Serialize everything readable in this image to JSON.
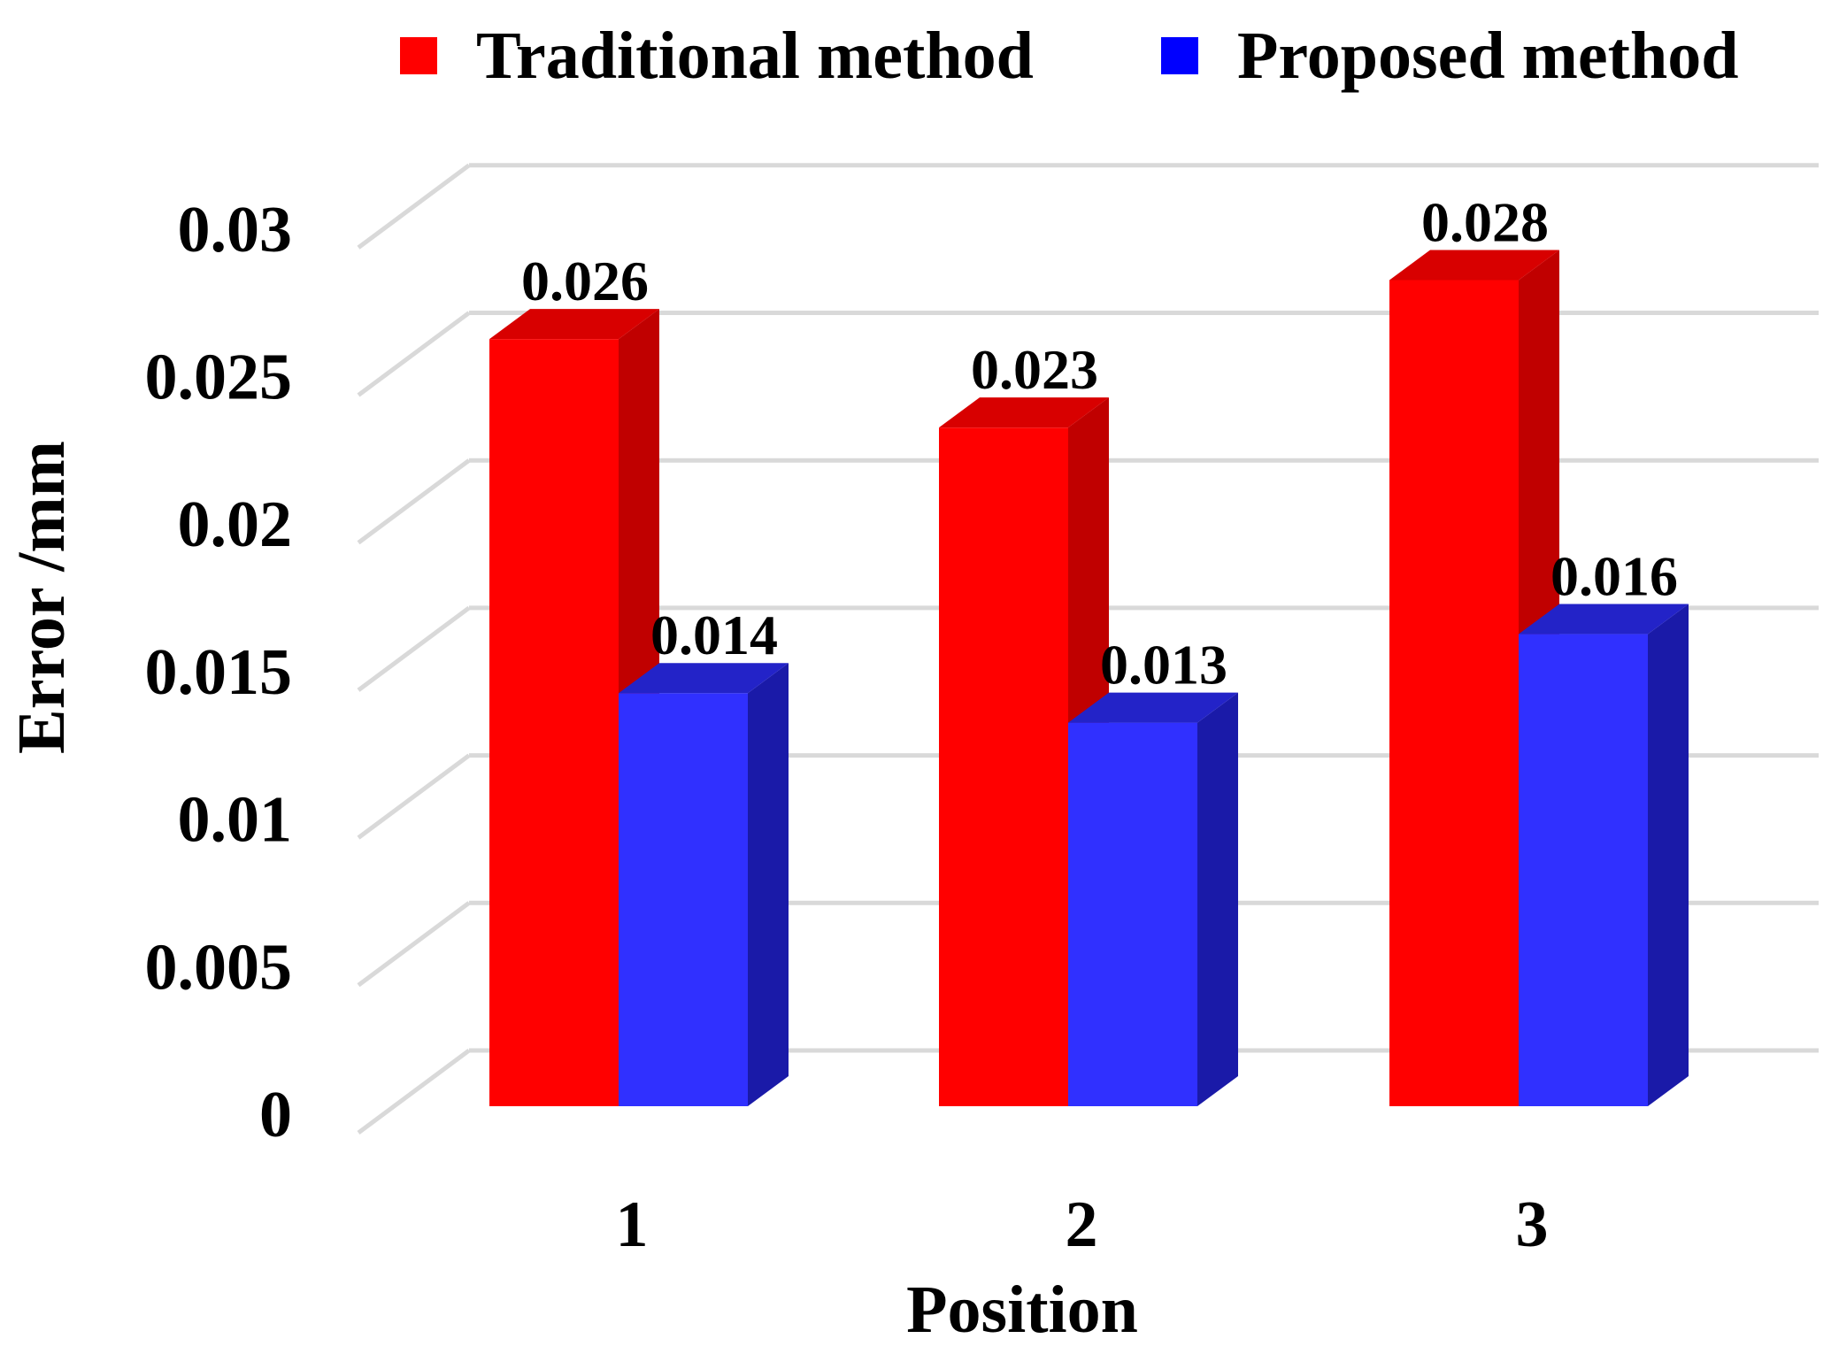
{
  "chart_data": {
    "type": "bar",
    "style": "3d-clustered",
    "categories": [
      "1",
      "2",
      "3"
    ],
    "series": [
      {
        "name": "Traditional method",
        "values": [
          0.026,
          0.023,
          0.028
        ],
        "color": "#FF0000",
        "side_color": "#C00000",
        "top_color": "#D80000"
      },
      {
        "name": "Proposed method",
        "values": [
          0.014,
          0.013,
          0.016
        ],
        "color": "#3030FF",
        "side_color": "#1A1AA8",
        "top_color": "#2323C8"
      }
    ],
    "data_labels": [
      [
        "0.026",
        "0.023",
        "0.028"
      ],
      [
        "0.014",
        "0.013",
        "0.016"
      ]
    ],
    "xlabel": "Position",
    "ylabel": "Error /mm",
    "ylim": [
      0,
      0.03
    ],
    "yticks": [
      0,
      0.005,
      0.01,
      0.015,
      0.02,
      0.025,
      0.03
    ],
    "ytick_labels": [
      "0",
      "0.005",
      "0.01",
      "0.015",
      "0.02",
      "0.025",
      "0.03"
    ],
    "grid": true,
    "grid_color": "#D9D9D9",
    "legend_position": "top"
  }
}
